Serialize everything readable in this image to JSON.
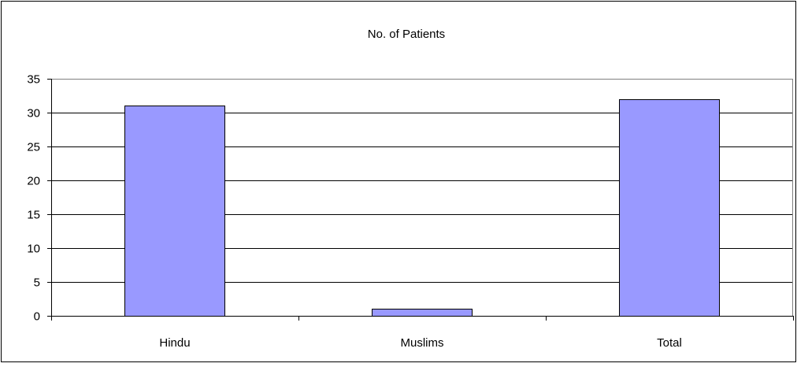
{
  "chart_data": {
    "type": "bar",
    "title": "No. of Patients",
    "xlabel": "",
    "ylabel": "",
    "categories": [
      "Hindu",
      "Muslims",
      "Total"
    ],
    "values": [
      31,
      1,
      32
    ],
    "ylim": [
      0,
      35
    ],
    "yticks": [
      "0",
      "5",
      "10",
      "15",
      "20",
      "25",
      "30",
      "35"
    ],
    "grid": true,
    "legend": "none",
    "colors": {
      "bar_fill": "#9999ff",
      "bar_stroke": "#000000",
      "plot_background": "#ffffff",
      "plot_border": "#808080",
      "gridline": "#000000"
    }
  }
}
